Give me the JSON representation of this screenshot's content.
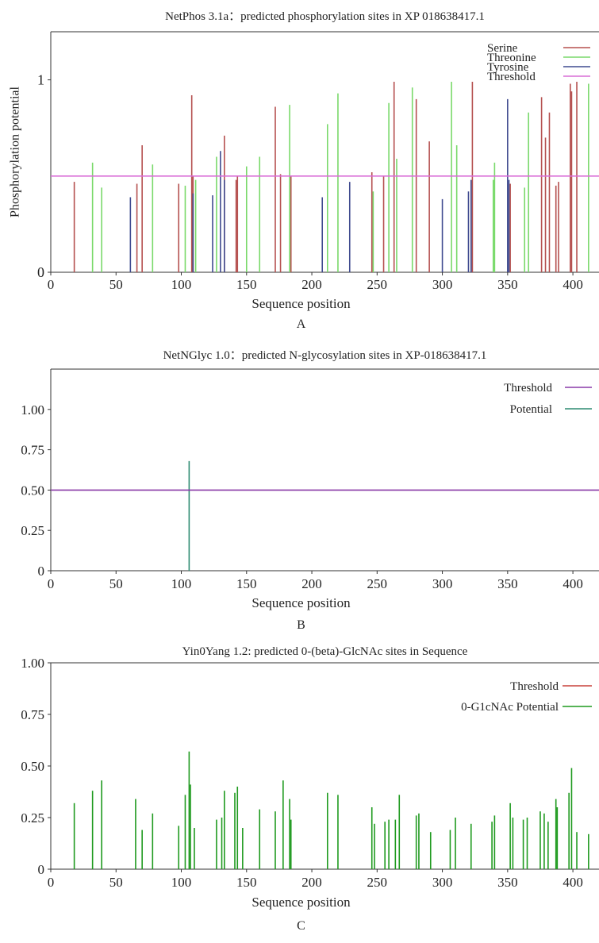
{
  "chart_data": [
    {
      "id": "A",
      "type": "bar",
      "title": "NetPhos 3.1a：predicted phosphorylation sites in XP 018638417.1",
      "xlabel": "Sequence position",
      "ylabel": "Phosphorylation potential",
      "caption": "A",
      "xlim": [
        0,
        420
      ],
      "ylim": [
        0,
        1.25
      ],
      "xticks": [
        "0",
        "50",
        "100",
        "150",
        "200",
        "250",
        "300",
        "350",
        "400"
      ],
      "yticks": [
        "0",
        "1"
      ],
      "legend_position": "top-right",
      "threshold": 0.5,
      "series": [
        {
          "name": "Serine",
          "color": "#b5504f",
          "points": [
            [
              18,
              0.47
            ],
            [
              66,
              0.46
            ],
            [
              70,
              0.66
            ],
            [
              98,
              0.46
            ],
            [
              108,
              0.92
            ],
            [
              109,
              0.5
            ],
            [
              133,
              0.71
            ],
            [
              142,
              0.48
            ],
            [
              143,
              0.5
            ],
            [
              172,
              0.86
            ],
            [
              176,
              0.51
            ],
            [
              184,
              0.5
            ],
            [
              246,
              0.52
            ],
            [
              255,
              0.5
            ],
            [
              263,
              0.99
            ],
            [
              280,
              0.9
            ],
            [
              290,
              0.68
            ],
            [
              323,
              0.99
            ],
            [
              352,
              0.46
            ],
            [
              376,
              0.91
            ],
            [
              379,
              0.7
            ],
            [
              382,
              0.83
            ],
            [
              387,
              0.45
            ],
            [
              389,
              0.47
            ],
            [
              398,
              0.98
            ],
            [
              399,
              0.94
            ],
            [
              403,
              0.99
            ]
          ]
        },
        {
          "name": "Threonine",
          "color": "#79d96a",
          "points": [
            [
              32,
              0.57
            ],
            [
              39,
              0.44
            ],
            [
              78,
              0.56
            ],
            [
              103,
              0.45
            ],
            [
              111,
              0.48
            ],
            [
              127,
              0.6
            ],
            [
              150,
              0.55
            ],
            [
              160,
              0.6
            ],
            [
              183,
              0.87
            ],
            [
              212,
              0.77
            ],
            [
              220,
              0.93
            ],
            [
              247,
              0.42
            ],
            [
              259,
              0.88
            ],
            [
              265,
              0.59
            ],
            [
              277,
              0.96
            ],
            [
              307,
              0.99
            ],
            [
              311,
              0.66
            ],
            [
              339,
              0.48
            ],
            [
              340,
              0.57
            ],
            [
              363,
              0.44
            ],
            [
              366,
              0.83
            ],
            [
              412,
              0.98
            ]
          ]
        },
        {
          "name": "Tyrosine",
          "color": "#3f4a8f",
          "points": [
            [
              61,
              0.39
            ],
            [
              109,
              0.41
            ],
            [
              124,
              0.4
            ],
            [
              130,
              0.63
            ],
            [
              133,
              0.48
            ],
            [
              208,
              0.39
            ],
            [
              229,
              0.47
            ],
            [
              300,
              0.38
            ],
            [
              320,
              0.42
            ],
            [
              322,
              0.48
            ],
            [
              350,
              0.9
            ],
            [
              351,
              0.48
            ]
          ]
        }
      ],
      "threshold_series": {
        "name": "Threshold",
        "color": "#d96ed6"
      }
    },
    {
      "id": "B",
      "type": "bar",
      "title": "NetNGlyc 1.0：predicted N-glycosylation sites in XP-018638417.1",
      "xlabel": "Sequence position",
      "ylabel": "",
      "caption": "B",
      "xlim": [
        0,
        420
      ],
      "ylim": [
        0,
        1.25
      ],
      "xticks": [
        "0",
        "50",
        "100",
        "150",
        "200",
        "250",
        "300",
        "350",
        "400"
      ],
      "yticks": [
        "0",
        "0.25",
        "0.50",
        "0.75",
        "1.00"
      ],
      "legend_position": "top-right",
      "threshold": 0.5,
      "series": [
        {
          "name": "Potential",
          "color": "#2e8b72",
          "points": [
            [
              106,
              0.68
            ]
          ]
        }
      ],
      "threshold_series": {
        "name": "Threshold",
        "color": "#8a3aa8"
      }
    },
    {
      "id": "C",
      "type": "bar",
      "title": "Yin0Yang 1.2: predicted 0-(beta)-GlcNAc sites in Sequence",
      "xlabel": "Sequence position",
      "ylabel": "",
      "caption": "C",
      "xlim": [
        0,
        420
      ],
      "ylim": [
        0,
        1.0
      ],
      "xticks": [
        "0",
        "50",
        "100",
        "150",
        "200",
        "250",
        "300",
        "350",
        "400"
      ],
      "yticks": [
        "0",
        "0.25",
        "0.50",
        "0.75",
        "1.00"
      ],
      "legend_position": "top-right",
      "series": [
        {
          "name": "0-G1cNAc Potential",
          "color": "#1f9a1f",
          "points": [
            [
              18,
              0.32
            ],
            [
              32,
              0.38
            ],
            [
              39,
              0.43
            ],
            [
              65,
              0.34
            ],
            [
              70,
              0.19
            ],
            [
              78,
              0.27
            ],
            [
              98,
              0.21
            ],
            [
              103,
              0.36
            ],
            [
              106,
              0.57
            ],
            [
              107,
              0.41
            ],
            [
              110,
              0.2
            ],
            [
              127,
              0.24
            ],
            [
              131,
              0.25
            ],
            [
              133,
              0.38
            ],
            [
              141,
              0.37
            ],
            [
              143,
              0.4
            ],
            [
              147,
              0.2
            ],
            [
              160,
              0.29
            ],
            [
              172,
              0.28
            ],
            [
              178,
              0.43
            ],
            [
              183,
              0.34
            ],
            [
              184,
              0.24
            ],
            [
              212,
              0.37
            ],
            [
              220,
              0.36
            ],
            [
              246,
              0.3
            ],
            [
              248,
              0.22
            ],
            [
              256,
              0.23
            ],
            [
              259,
              0.24
            ],
            [
              264,
              0.24
            ],
            [
              267,
              0.36
            ],
            [
              280,
              0.26
            ],
            [
              282,
              0.27
            ],
            [
              291,
              0.18
            ],
            [
              306,
              0.19
            ],
            [
              310,
              0.25
            ],
            [
              322,
              0.22
            ],
            [
              338,
              0.23
            ],
            [
              340,
              0.26
            ],
            [
              352,
              0.32
            ],
            [
              354,
              0.25
            ],
            [
              362,
              0.24
            ],
            [
              365,
              0.25
            ],
            [
              375,
              0.28
            ],
            [
              378,
              0.27
            ],
            [
              381,
              0.23
            ],
            [
              387,
              0.34
            ],
            [
              388,
              0.3
            ],
            [
              397,
              0.37
            ],
            [
              399,
              0.49
            ],
            [
              403,
              0.18
            ],
            [
              412,
              0.17
            ]
          ]
        }
      ],
      "threshold_series": {
        "name": "Threshold",
        "color": "#c8423c"
      }
    }
  ]
}
